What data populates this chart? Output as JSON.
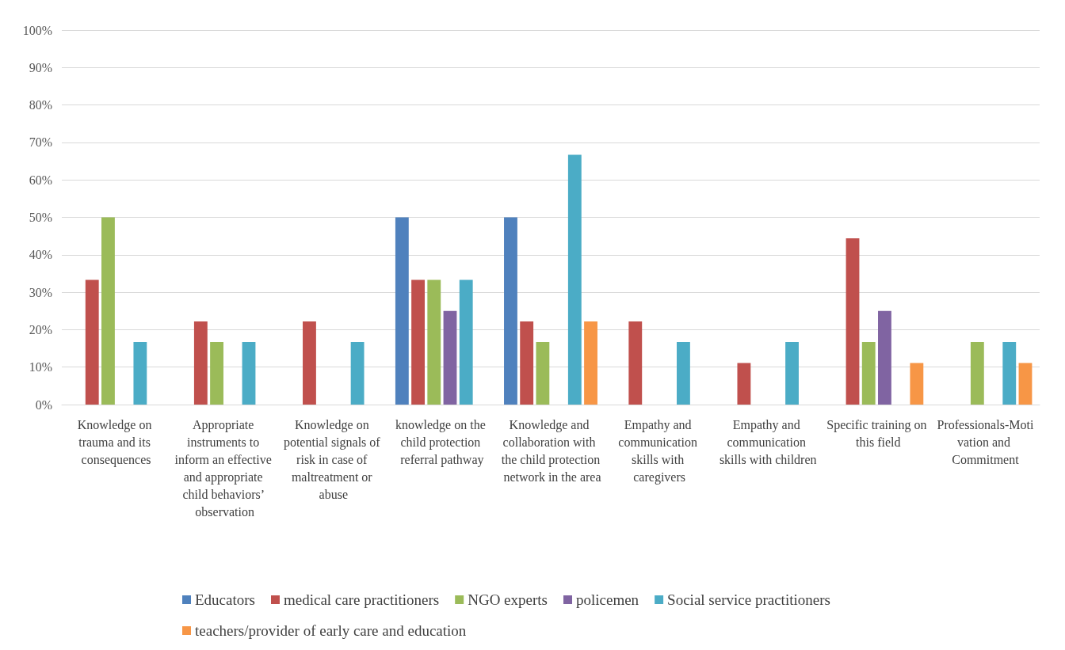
{
  "chart_data": {
    "type": "bar",
    "categories": [
      "Knowledge on trauma and its consequences",
      "Appropriate instruments to inform an effective and appropriate child behaviors’ observation",
      "Knowledge on potential signals of risk in case of maltreatment or abuse",
      "knowledge on the child protection referral pathway",
      "Knowledge and collaboration with the child protection network in the area",
      "Empathy and communication skills with caregivers",
      "Empathy and communication skills with children",
      "Specific training on this field",
      "Professionals-Motivation and Commitment"
    ],
    "series": [
      {
        "name": "Educators",
        "color": "#4f81bd",
        "values": [
          0,
          0,
          0,
          50,
          50,
          0,
          0,
          0,
          0
        ]
      },
      {
        "name": "medical care practitioners",
        "color": "#c0504d",
        "values": [
          33.3,
          22.2,
          22.2,
          33.3,
          22.2,
          22.2,
          11.1,
          44.4,
          0
        ]
      },
      {
        "name": "NGO experts",
        "color": "#9bbb59",
        "values": [
          50,
          16.7,
          0,
          33.3,
          16.7,
          0,
          0,
          16.7,
          16.7
        ]
      },
      {
        "name": "policemen",
        "color": "#8064a2",
        "values": [
          0,
          0,
          0,
          25,
          0,
          0,
          0,
          25,
          0
        ]
      },
      {
        "name": "Social service practitioners",
        "color": "#4bacc6",
        "values": [
          16.7,
          16.7,
          16.7,
          33.3,
          66.7,
          16.7,
          16.7,
          0,
          16.7
        ]
      },
      {
        "name": "teachers/provider of early care and education",
        "color": "#f79646",
        "values": [
          0,
          0,
          0,
          0,
          22.2,
          0,
          0,
          11.1,
          11.1
        ]
      }
    ],
    "ylim": [
      0,
      100
    ],
    "yticks": [
      {
        "value": 0,
        "label": "0%"
      },
      {
        "value": 10,
        "label": "10%"
      },
      {
        "value": 20,
        "label": "20%"
      },
      {
        "value": 30,
        "label": "30%"
      },
      {
        "value": 40,
        "label": "40%"
      },
      {
        "value": 50,
        "label": "50%"
      },
      {
        "value": 60,
        "label": "60%"
      },
      {
        "value": 70,
        "label": "70%"
      },
      {
        "value": 80,
        "label": "80%"
      },
      {
        "value": 90,
        "label": "90%"
      },
      {
        "value": 100,
        "label": "100%"
      }
    ],
    "grid": "y",
    "legend": "bottom"
  }
}
